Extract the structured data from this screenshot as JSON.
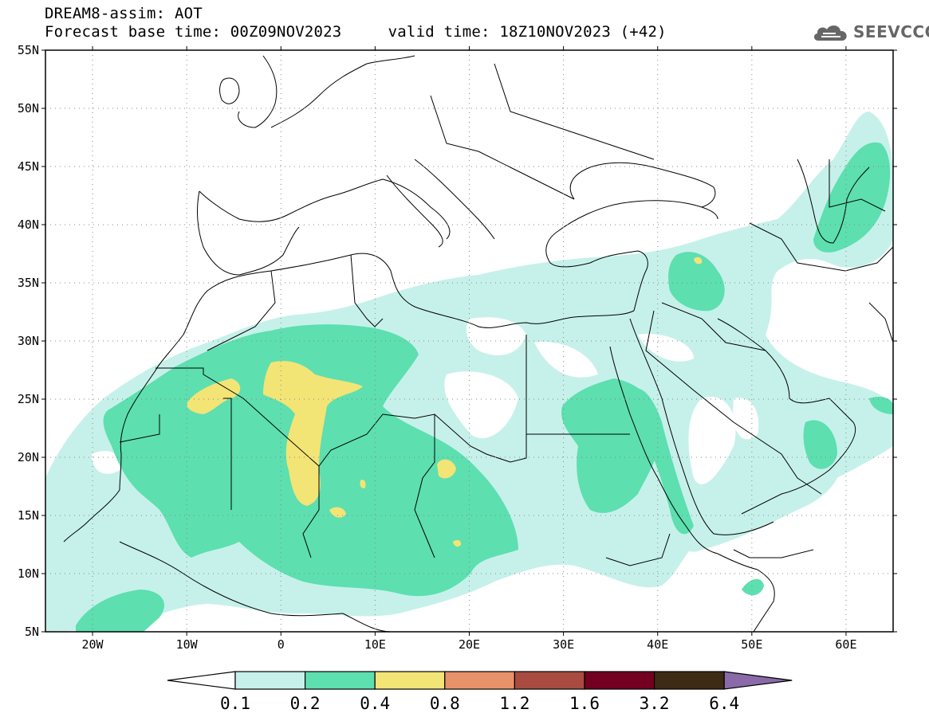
{
  "header": {
    "title_line1": "DREAM8-assim: AOT",
    "base_time": "Forecast base time: 00Z09NOV2023",
    "valid_time": "valid time: 18Z10NOV2023 (+42)"
  },
  "logo": {
    "text": "SEEVCCC",
    "icon": "cloud-icon"
  },
  "map": {
    "lat_labels": [
      "55N",
      "50N",
      "45N",
      "40N",
      "35N",
      "30N",
      "25N",
      "20N",
      "15N",
      "10N",
      "5N"
    ],
    "lon_labels": [
      "20W",
      "10W",
      "0",
      "10E",
      "20E",
      "30E",
      "40E",
      "50E",
      "60E"
    ],
    "lat_values": [
      55,
      50,
      45,
      40,
      35,
      30,
      25,
      20,
      15,
      10,
      5
    ],
    "lon_values": [
      -20,
      -10,
      0,
      10,
      20,
      30,
      40,
      50,
      60
    ],
    "lon_range": [
      -25,
      65
    ],
    "lat_range": [
      5,
      55
    ],
    "grid": "dotted"
  },
  "colorbar": {
    "levels": [
      "0.1",
      "0.2",
      "0.4",
      "0.8",
      "1.2",
      "1.6",
      "3.2",
      "6.4"
    ],
    "colors": [
      "#c6f1ea",
      "#5ddfb0",
      "#f3e476",
      "#e8926a",
      "#a94b41",
      "#730020",
      "#3d2b15",
      "#8a6aa8"
    ],
    "under_color": "#ffffff"
  }
}
